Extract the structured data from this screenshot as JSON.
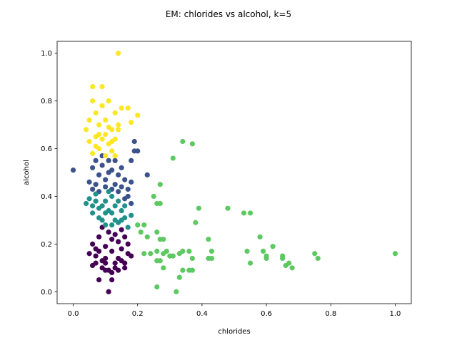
{
  "chart_data": {
    "type": "scatter",
    "title": "EM: chlorides vs alcohol, k=5",
    "xlabel": "chlorides",
    "ylabel": "alcohol",
    "xlim": [
      -0.05,
      1.05
    ],
    "ylim": [
      -0.05,
      1.05
    ],
    "xticks": [
      "0.0",
      "0.2",
      "0.4",
      "0.6",
      "0.8",
      "1.0"
    ],
    "yticks": [
      "0.0",
      "0.2",
      "0.4",
      "0.6",
      "0.8",
      "1.0"
    ],
    "grid": false,
    "legend": "none",
    "clusters": [
      {
        "color": "#440154",
        "points": [
          [
            0.05,
            0.16
          ],
          [
            0.06,
            0.11
          ],
          [
            0.07,
            0.15
          ],
          [
            0.08,
            0.05
          ],
          [
            0.09,
            0.1
          ],
          [
            0.1,
            0.12
          ],
          [
            0.11,
            0.0
          ],
          [
            0.12,
            0.05
          ],
          [
            0.13,
            0.1
          ],
          [
            0.14,
            0.14
          ],
          [
            0.15,
            0.18
          ],
          [
            0.16,
            0.12
          ],
          [
            0.17,
            0.2
          ],
          [
            0.18,
            0.15
          ],
          [
            0.12,
            0.22
          ],
          [
            0.1,
            0.19
          ],
          [
            0.08,
            0.23
          ],
          [
            0.09,
            0.27
          ],
          [
            0.11,
            0.25
          ],
          [
            0.13,
            0.24
          ],
          [
            0.14,
            0.21
          ],
          [
            0.15,
            0.26
          ],
          [
            0.16,
            0.23
          ],
          [
            0.17,
            0.16
          ],
          [
            0.12,
            0.17
          ],
          [
            0.1,
            0.14
          ],
          [
            0.09,
            0.13
          ],
          [
            0.11,
            0.09
          ],
          [
            0.13,
            0.12
          ],
          [
            0.14,
            0.09
          ],
          [
            0.16,
            0.1
          ],
          [
            0.07,
            0.18
          ],
          [
            0.06,
            0.2
          ],
          [
            0.08,
            0.17
          ],
          [
            0.12,
            0.08
          ],
          [
            0.15,
            0.13
          ],
          [
            0.1,
            0.09
          ],
          [
            0.07,
            0.12
          ]
        ]
      },
      {
        "color": "#3b528b",
        "points": [
          [
            0.0,
            0.51
          ],
          [
            0.05,
            0.46
          ],
          [
            0.06,
            0.52
          ],
          [
            0.07,
            0.55
          ],
          [
            0.08,
            0.49
          ],
          [
            0.09,
            0.53
          ],
          [
            0.1,
            0.47
          ],
          [
            0.11,
            0.55
          ],
          [
            0.12,
            0.51
          ],
          [
            0.13,
            0.45
          ],
          [
            0.14,
            0.49
          ],
          [
            0.15,
            0.52
          ],
          [
            0.16,
            0.47
          ],
          [
            0.17,
            0.43
          ],
          [
            0.18,
            0.55
          ],
          [
            0.19,
            0.59
          ],
          [
            0.2,
            0.59
          ],
          [
            0.23,
            0.49
          ],
          [
            0.19,
            0.63
          ],
          [
            0.17,
            0.4
          ],
          [
            0.18,
            0.37
          ],
          [
            0.12,
            0.43
          ],
          [
            0.1,
            0.44
          ],
          [
            0.08,
            0.42
          ],
          [
            0.07,
            0.45
          ],
          [
            0.06,
            0.43
          ],
          [
            0.14,
            0.42
          ],
          [
            0.16,
            0.39
          ],
          [
            0.15,
            0.44
          ],
          [
            0.13,
            0.55
          ],
          [
            0.18,
            0.46
          ],
          [
            0.09,
            0.57
          ],
          [
            0.11,
            0.5
          ]
        ]
      },
      {
        "color": "#21918c",
        "points": [
          [
            0.04,
            0.37
          ],
          [
            0.05,
            0.39
          ],
          [
            0.06,
            0.33
          ],
          [
            0.07,
            0.41
          ],
          [
            0.08,
            0.35
          ],
          [
            0.09,
            0.3
          ],
          [
            0.1,
            0.38
          ],
          [
            0.11,
            0.42
          ],
          [
            0.12,
            0.33
          ],
          [
            0.13,
            0.36
          ],
          [
            0.14,
            0.29
          ],
          [
            0.15,
            0.34
          ],
          [
            0.16,
            0.31
          ],
          [
            0.17,
            0.27
          ],
          [
            0.18,
            0.32
          ],
          [
            0.1,
            0.28
          ],
          [
            0.12,
            0.4
          ],
          [
            0.08,
            0.31
          ],
          [
            0.09,
            0.36
          ],
          [
            0.11,
            0.34
          ],
          [
            0.13,
            0.3
          ],
          [
            0.06,
            0.36
          ],
          [
            0.07,
            0.38
          ],
          [
            0.14,
            0.38
          ],
          [
            0.15,
            0.3
          ],
          [
            0.1,
            0.33
          ],
          [
            0.12,
            0.28
          ],
          [
            0.16,
            0.36
          ]
        ]
      },
      {
        "color": "#5ec962",
        "points": [
          [
            0.2,
            0.28
          ],
          [
            0.21,
            0.25
          ],
          [
            0.22,
            0.28
          ],
          [
            0.23,
            0.23
          ],
          [
            0.22,
            0.16
          ],
          [
            0.24,
            0.16
          ],
          [
            0.25,
            0.4
          ],
          [
            0.26,
            0.37
          ],
          [
            0.27,
            0.37
          ],
          [
            0.27,
            0.45
          ],
          [
            0.26,
            0.25
          ],
          [
            0.27,
            0.22
          ],
          [
            0.28,
            0.22
          ],
          [
            0.26,
            0.17
          ],
          [
            0.27,
            0.13
          ],
          [
            0.28,
            0.1
          ],
          [
            0.29,
            0.17
          ],
          [
            0.3,
            0.15
          ],
          [
            0.31,
            0.56
          ],
          [
            0.32,
            0.0
          ],
          [
            0.33,
            0.06
          ],
          [
            0.34,
            0.09
          ],
          [
            0.34,
            0.63
          ],
          [
            0.34,
            0.17
          ],
          [
            0.36,
            0.17
          ],
          [
            0.36,
            0.09
          ],
          [
            0.37,
            0.62
          ],
          [
            0.37,
            0.14
          ],
          [
            0.38,
            0.29
          ],
          [
            0.39,
            0.35
          ],
          [
            0.42,
            0.22
          ],
          [
            0.42,
            0.14
          ],
          [
            0.43,
            0.14
          ],
          [
            0.43,
            0.17
          ],
          [
            0.48,
            0.35
          ],
          [
            0.53,
            0.33
          ],
          [
            0.54,
            0.17
          ],
          [
            0.55,
            0.33
          ],
          [
            0.55,
            0.12
          ],
          [
            0.58,
            0.23
          ],
          [
            0.59,
            0.17
          ],
          [
            0.6,
            0.15
          ],
          [
            0.6,
            0.14
          ],
          [
            0.62,
            0.19
          ],
          [
            0.65,
            0.15
          ],
          [
            0.65,
            0.14
          ],
          [
            0.66,
            0.11
          ],
          [
            0.67,
            0.12
          ],
          [
            0.68,
            0.1
          ],
          [
            0.75,
            0.16
          ],
          [
            0.76,
            0.14
          ],
          [
            1.0,
            0.16
          ],
          [
            0.26,
            0.02
          ],
          [
            0.26,
            0.13
          ],
          [
            0.28,
            0.16
          ],
          [
            0.37,
            0.09
          ],
          [
            0.31,
            0.15
          ],
          [
            0.33,
            0.16
          ]
        ]
      },
      {
        "color": "#fde725",
        "points": [
          [
            0.04,
            0.68
          ],
          [
            0.05,
            0.63
          ],
          [
            0.05,
            0.72
          ],
          [
            0.06,
            0.86
          ],
          [
            0.06,
            0.8
          ],
          [
            0.07,
            0.75
          ],
          [
            0.07,
            0.65
          ],
          [
            0.08,
            0.7
          ],
          [
            0.08,
            0.6
          ],
          [
            0.09,
            0.86
          ],
          [
            0.09,
            0.78
          ],
          [
            0.1,
            0.66
          ],
          [
            0.1,
            0.72
          ],
          [
            0.11,
            0.8
          ],
          [
            0.11,
            0.62
          ],
          [
            0.12,
            0.68
          ],
          [
            0.12,
            0.59
          ],
          [
            0.13,
            0.75
          ],
          [
            0.13,
            0.64
          ],
          [
            0.14,
            1.0
          ],
          [
            0.14,
            0.7
          ],
          [
            0.15,
            0.77
          ],
          [
            0.17,
            0.77
          ],
          [
            0.18,
            0.71
          ],
          [
            0.2,
            0.74
          ],
          [
            0.06,
            0.58
          ],
          [
            0.08,
            0.66
          ],
          [
            0.1,
            0.57
          ],
          [
            0.12,
            0.63
          ],
          [
            0.11,
            0.69
          ],
          [
            0.09,
            0.64
          ],
          [
            0.07,
            0.61
          ],
          [
            0.14,
            0.68
          ],
          [
            0.13,
            0.57
          ]
        ]
      }
    ]
  }
}
